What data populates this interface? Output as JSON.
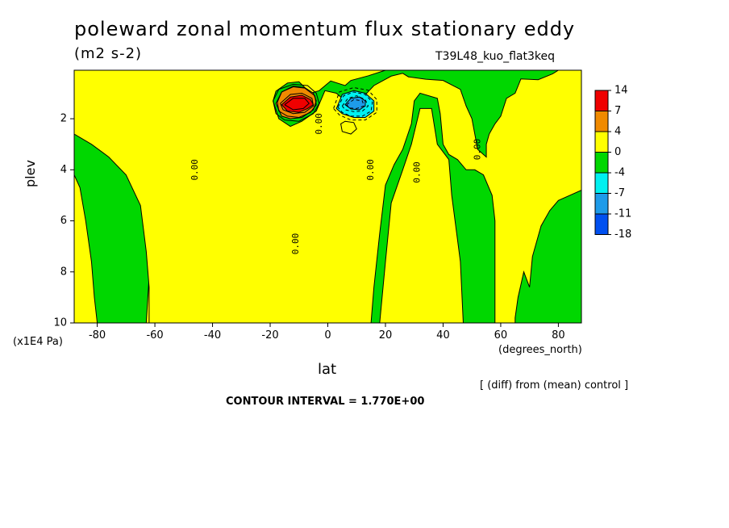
{
  "title": "poleward zonal momentum flux stationary eddy",
  "units": "(m2 s-2)",
  "run_id": "T39L48_kuo_flat3keq",
  "y_axis_label": "plev",
  "y_axis_units": "(x1E4 Pa)",
  "x_axis_label": "lat",
  "x_axis_units": "(degrees_north)",
  "difference_note": "[ (diff) from (mean) control ]",
  "contour_interval_text": "CONTOUR INTERVAL = 1.770E+00",
  "colors": {
    "red": "#ef0000",
    "orange": "#f08a00",
    "yellow": "#ffff00",
    "green": "#00d700",
    "cyan": "#00f0f0",
    "lightblue": "#1e9be9",
    "blue": "#0050f0"
  },
  "chart_data": {
    "type": "heatmap",
    "title": "poleward zonal momentum flux stationary eddy",
    "xlabel": "lat",
    "ylabel": "plev",
    "xlim": [
      -88,
      88
    ],
    "ylim": [
      10,
      0.1
    ],
    "xticks": [
      -80,
      -60,
      -40,
      -20,
      0,
      20,
      40,
      60,
      80
    ],
    "yticks": [
      2,
      4,
      6,
      8,
      10
    ],
    "colorbar": {
      "labels": [
        "14",
        "7",
        "4",
        "0",
        "-4",
        "-7",
        "-11",
        "-18"
      ],
      "bins": [
        {
          "color": "red"
        },
        {
          "color": "orange"
        },
        {
          "color": "yellow"
        },
        {
          "color": "green"
        },
        {
          "color": "cyan"
        },
        {
          "color": "lightblue"
        },
        {
          "color": "blue"
        }
      ]
    },
    "contour_labels": [
      {
        "text": "0.00",
        "lat": -46,
        "plev": 4.0
      },
      {
        "text": "0.00",
        "lat": -11,
        "plev": 6.9
      },
      {
        "text": "0.00",
        "lat": -3,
        "plev": 2.2
      },
      {
        "text": "0.00",
        "lat": 15,
        "plev": 4.0
      },
      {
        "text": "0.00",
        "lat": 31,
        "plev": 4.1
      },
      {
        "text": "0.00",
        "lat": 52,
        "plev": 3.2
      }
    ],
    "regions": [
      {
        "color": "yellow",
        "points": [
          [
            -88,
            10
          ],
          [
            -88,
            4.2
          ],
          [
            -86,
            4.7
          ],
          [
            -84,
            6.0
          ],
          [
            -82,
            7.6
          ],
          [
            -81,
            9.0
          ],
          [
            -80,
            10
          ]
        ]
      },
      {
        "color": "yellow",
        "points": [
          [
            -63,
            10
          ],
          [
            -62,
            8.2
          ],
          [
            -60,
            7.0
          ],
          [
            -57,
            5.2
          ],
          [
            -54,
            3.8
          ],
          [
            -50,
            2.6
          ],
          [
            -47,
            2.0
          ],
          [
            -44,
            1.8
          ],
          [
            -40,
            1.9
          ],
          [
            -36,
            2.2
          ],
          [
            -32,
            2.8
          ],
          [
            -29,
            3.4
          ],
          [
            -27,
            4.5
          ],
          [
            -27,
            5.4
          ],
          [
            -25,
            6.3
          ],
          [
            -23,
            7.5
          ],
          [
            -21,
            8.4
          ],
          [
            -20,
            9.2
          ],
          [
            -19.5,
            10
          ]
        ]
      },
      {
        "color": "yellow",
        "points": [
          [
            -12,
            10
          ],
          [
            -13,
            8.0
          ],
          [
            -14,
            6.5
          ],
          [
            -14,
            5.8
          ],
          [
            -16,
            5.5
          ],
          [
            -15,
            4.8
          ],
          [
            -12,
            4.4
          ],
          [
            -8,
            4.3
          ],
          [
            -6,
            4.9
          ],
          [
            -5,
            6.7
          ],
          [
            -5,
            8.0
          ],
          [
            -4,
            8.7
          ],
          [
            3,
            8.8
          ],
          [
            9,
            9.5
          ],
          [
            11,
            10
          ]
        ]
      },
      {
        "color": "yellow",
        "points": [
          [
            18,
            10
          ],
          [
            20,
            7.6
          ],
          [
            22,
            5.3
          ],
          [
            26,
            4.0
          ],
          [
            29,
            3.0
          ],
          [
            32,
            1.6
          ],
          [
            36,
            1.6
          ],
          [
            38,
            3.0
          ],
          [
            42,
            3.6
          ],
          [
            43,
            5.0
          ],
          [
            46,
            7.6
          ],
          [
            47,
            10
          ]
        ]
      },
      {
        "color": "yellow",
        "points": [
          [
            -88,
            0.1
          ],
          [
            20,
            0.1
          ],
          [
            14,
            0.32
          ],
          [
            8,
            0.5
          ],
          [
            6,
            0.7
          ],
          [
            1,
            0.52
          ],
          [
            -3,
            0.9
          ],
          [
            -6,
            1.0
          ],
          [
            -10,
            0.55
          ],
          [
            -14,
            0.6
          ],
          [
            -18,
            0.92
          ],
          [
            -19,
            1.3
          ],
          [
            -17,
            2.0
          ],
          [
            -13,
            2.3
          ],
          [
            -9,
            2.1
          ],
          [
            -4,
            1.7
          ],
          [
            -1,
            0.9
          ],
          [
            3,
            1.0
          ],
          [
            7,
            1.4
          ],
          [
            11,
            1.3
          ],
          [
            16,
            0.7
          ],
          [
            22,
            0.33
          ],
          [
            26,
            0.22
          ],
          [
            28,
            0.36
          ],
          [
            34,
            0.45
          ],
          [
            40,
            0.5
          ],
          [
            46,
            0.85
          ],
          [
            48,
            1.5
          ],
          [
            50,
            2.0
          ],
          [
            51,
            2.6
          ],
          [
            52,
            3.2
          ],
          [
            55,
            3.5
          ],
          [
            55,
            3.0
          ],
          [
            56,
            2.6
          ],
          [
            58,
            2.2
          ],
          [
            60,
            1.9
          ],
          [
            62,
            1.2
          ],
          [
            65,
            1.0
          ],
          [
            67,
            0.44
          ],
          [
            73,
            0.47
          ],
          [
            78,
            0.24
          ],
          [
            80,
            0.1
          ],
          [
            88,
            0.1
          ],
          [
            88,
            4.8
          ],
          [
            84,
            5.0
          ],
          [
            80,
            5.2
          ],
          [
            77,
            5.6
          ],
          [
            74,
            6.2
          ],
          [
            71,
            7.4
          ],
          [
            70,
            8.6
          ],
          [
            68,
            8.0
          ],
          [
            66,
            9.0
          ],
          [
            65,
            9.8
          ],
          [
            65,
            10
          ],
          [
            58,
            10
          ],
          [
            58,
            6.0
          ],
          [
            57,
            5.0
          ],
          [
            54,
            4.2
          ],
          [
            51,
            4.0
          ],
          [
            48,
            4.0
          ],
          [
            45,
            3.6
          ],
          [
            42,
            3.4
          ],
          [
            40,
            3.0
          ],
          [
            39,
            1.8
          ],
          [
            38,
            1.2
          ],
          [
            32,
            1.0
          ],
          [
            30,
            1.3
          ],
          [
            29,
            2.2
          ],
          [
            26,
            3.2
          ],
          [
            23,
            3.8
          ],
          [
            20,
            4.6
          ],
          [
            18,
            6.5
          ],
          [
            16,
            8.6
          ],
          [
            15,
            10
          ],
          [
            -62,
            10
          ],
          [
            -62,
            8.6
          ],
          [
            -63,
            7.2
          ],
          [
            -65,
            5.4
          ],
          [
            -70,
            4.2
          ],
          [
            -76,
            3.5
          ],
          [
            -82,
            3.0
          ],
          [
            -88,
            2.6
          ]
        ]
      },
      {
        "color": "yellow",
        "points": [
          [
            6,
            2.1
          ],
          [
            9,
            2.15
          ],
          [
            10,
            2.4
          ],
          [
            8,
            2.6
          ],
          [
            5,
            2.5
          ],
          [
            4.5,
            2.2
          ]
        ]
      },
      {
        "color": "orange",
        "points": [
          [
            -18,
            1.4
          ],
          [
            -16,
            0.95
          ],
          [
            -12,
            0.72
          ],
          [
            -8,
            0.78
          ],
          [
            -5,
            1.0
          ],
          [
            -4,
            1.3
          ],
          [
            -5,
            1.65
          ],
          [
            -9,
            1.95
          ],
          [
            -13,
            2.0
          ],
          [
            -16,
            1.9
          ]
        ]
      },
      {
        "color": "red",
        "points": [
          [
            -16,
            1.45
          ],
          [
            -13,
            1.15
          ],
          [
            -9,
            1.08
          ],
          [
            -6,
            1.25
          ],
          [
            -5,
            1.45
          ],
          [
            -7,
            1.6
          ],
          [
            -10,
            1.75
          ],
          [
            -14,
            1.7
          ]
        ]
      },
      {
        "color": "cyan",
        "points": [
          [
            3,
            1.6
          ],
          [
            5,
            1.05
          ],
          [
            9,
            0.9
          ],
          [
            13,
            1.0
          ],
          [
            16,
            1.3
          ],
          [
            16,
            1.7
          ],
          [
            13,
            1.95
          ],
          [
            9,
            1.95
          ],
          [
            5,
            1.8
          ]
        ]
      },
      {
        "color": "lightblue",
        "points": [
          [
            6,
            1.45
          ],
          [
            8,
            1.2
          ],
          [
            11,
            1.15
          ],
          [
            13,
            1.3
          ],
          [
            13,
            1.5
          ],
          [
            11,
            1.65
          ],
          [
            8,
            1.62
          ]
        ]
      }
    ],
    "contour_lines": [
      {
        "style": "solid",
        "points": [
          [
            -19,
            1.3
          ],
          [
            -17,
            0.85
          ],
          [
            -12,
            0.65
          ],
          [
            -7,
            0.7
          ],
          [
            -4,
            1.0
          ],
          [
            -3,
            1.4
          ],
          [
            -5,
            1.8
          ],
          [
            -10,
            2.1
          ],
          [
            -15,
            2.05
          ],
          [
            -18,
            1.8
          ],
          [
            -19,
            1.3
          ]
        ]
      },
      {
        "style": "solid",
        "points": [
          [
            -17.5,
            1.35
          ],
          [
            -16,
            0.95
          ],
          [
            -12,
            0.75
          ],
          [
            -8,
            0.8
          ],
          [
            -4.5,
            1.1
          ],
          [
            -4,
            1.45
          ],
          [
            -6,
            1.75
          ],
          [
            -10,
            1.95
          ],
          [
            -14,
            1.9
          ],
          [
            -17,
            1.7
          ],
          [
            -17.5,
            1.35
          ]
        ]
      },
      {
        "style": "solid",
        "points": [
          [
            -16.5,
            1.4
          ],
          [
            -13,
            1.05
          ],
          [
            -9,
            1.0
          ],
          [
            -5.5,
            1.2
          ],
          [
            -5,
            1.5
          ],
          [
            -8,
            1.75
          ],
          [
            -12,
            1.8
          ],
          [
            -15.5,
            1.65
          ],
          [
            -16.5,
            1.4
          ]
        ]
      },
      {
        "style": "solid",
        "points": [
          [
            -15,
            1.45
          ],
          [
            -12,
            1.2
          ],
          [
            -8,
            1.2
          ],
          [
            -6.5,
            1.4
          ],
          [
            -8.5,
            1.6
          ],
          [
            -12,
            1.65
          ],
          [
            -15,
            1.45
          ]
        ]
      },
      {
        "style": "dashed",
        "points": [
          [
            2,
            1.6
          ],
          [
            4,
            0.95
          ],
          [
            9,
            0.78
          ],
          [
            14,
            0.88
          ],
          [
            17,
            1.25
          ],
          [
            17,
            1.75
          ],
          [
            13,
            2.05
          ],
          [
            8,
            2.05
          ],
          [
            4,
            1.85
          ],
          [
            2,
            1.6
          ]
        ]
      },
      {
        "style": "dashed",
        "points": [
          [
            3.5,
            1.55
          ],
          [
            5.5,
            1.1
          ],
          [
            9,
            0.95
          ],
          [
            13,
            1.05
          ],
          [
            15.5,
            1.35
          ],
          [
            15,
            1.7
          ],
          [
            12,
            1.9
          ],
          [
            8,
            1.9
          ],
          [
            5,
            1.75
          ],
          [
            3.5,
            1.55
          ]
        ]
      },
      {
        "style": "dashed",
        "points": [
          [
            5,
            1.5
          ],
          [
            7,
            1.2
          ],
          [
            10,
            1.1
          ],
          [
            13,
            1.25
          ],
          [
            14,
            1.5
          ],
          [
            12,
            1.7
          ],
          [
            9,
            1.72
          ],
          [
            6,
            1.65
          ],
          [
            5,
            1.5
          ]
        ]
      },
      {
        "style": "dashed",
        "points": [
          [
            6.5,
            1.45
          ],
          [
            9,
            1.25
          ],
          [
            12,
            1.3
          ],
          [
            12.5,
            1.5
          ],
          [
            10,
            1.6
          ],
          [
            7.5,
            1.58
          ],
          [
            6.5,
            1.45
          ]
        ]
      }
    ]
  }
}
